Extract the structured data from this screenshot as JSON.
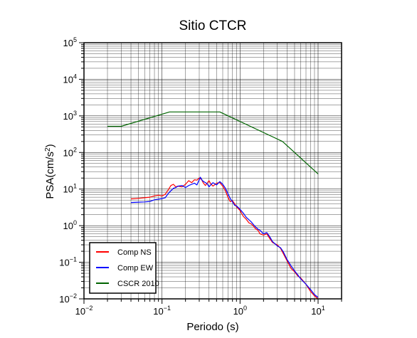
{
  "chart_data": {
    "type": "line",
    "title": "Sitio CTCR",
    "xlabel": "Periodo (s)",
    "ylabel_main": "PSA(cm/s",
    "ylabel_sup": "2",
    "ylabel_end": ")",
    "x_scale": "log",
    "y_scale": "log",
    "xlim": [
      0.01,
      20
    ],
    "ylim": [
      0.01,
      100000
    ],
    "grid": true,
    "legend_position": "bottom-left",
    "x_ticks": [
      {
        "base": "10",
        "exp": "−2"
      },
      {
        "base": "10",
        "exp": "−1"
      },
      {
        "base": "10",
        "exp": "0"
      },
      {
        "base": "10",
        "exp": "1"
      }
    ],
    "y_ticks": [
      {
        "base": "10",
        "exp": "−2"
      },
      {
        "base": "10",
        "exp": "−1"
      },
      {
        "base": "10",
        "exp": "0"
      },
      {
        "base": "10",
        "exp": "1"
      },
      {
        "base": "10",
        "exp": "2"
      },
      {
        "base": "10",
        "exp": "3"
      },
      {
        "base": "10",
        "exp": "4"
      },
      {
        "base": "10",
        "exp": "5"
      }
    ],
    "series": [
      {
        "name": "Comp NS",
        "color": "#ff0000",
        "points": [
          [
            0.04,
            5.4
          ],
          [
            0.05,
            5.6
          ],
          [
            0.06,
            5.8
          ],
          [
            0.07,
            6.0
          ],
          [
            0.08,
            6.5
          ],
          [
            0.09,
            6.8
          ],
          [
            0.1,
            6.5
          ],
          [
            0.11,
            7.2
          ],
          [
            0.12,
            9.5
          ],
          [
            0.13,
            12.5
          ],
          [
            0.14,
            13.5
          ],
          [
            0.15,
            11.5
          ],
          [
            0.16,
            12.0
          ],
          [
            0.18,
            11.5
          ],
          [
            0.2,
            13.5
          ],
          [
            0.22,
            17.0
          ],
          [
            0.24,
            15.0
          ],
          [
            0.26,
            18.0
          ],
          [
            0.28,
            17.5
          ],
          [
            0.3,
            20.0
          ],
          [
            0.32,
            18.5
          ],
          [
            0.34,
            14.5
          ],
          [
            0.36,
            12.5
          ],
          [
            0.38,
            14.5
          ],
          [
            0.4,
            17.0
          ],
          [
            0.42,
            14.0
          ],
          [
            0.45,
            12.0
          ],
          [
            0.5,
            14.5
          ],
          [
            0.55,
            15.0
          ],
          [
            0.6,
            12.0
          ],
          [
            0.65,
            9.0
          ],
          [
            0.7,
            6.0
          ],
          [
            0.75,
            4.5
          ],
          [
            0.8,
            4.8
          ],
          [
            0.85,
            4.0
          ],
          [
            0.9,
            3.3
          ],
          [
            1.0,
            2.6
          ],
          [
            1.1,
            1.8
          ],
          [
            1.2,
            1.5
          ],
          [
            1.3,
            1.2
          ],
          [
            1.4,
            1.1
          ],
          [
            1.5,
            0.95
          ],
          [
            1.6,
            0.8
          ],
          [
            1.7,
            0.75
          ],
          [
            1.8,
            0.6
          ],
          [
            2.0,
            0.55
          ],
          [
            2.2,
            0.6
          ],
          [
            2.4,
            0.45
          ],
          [
            2.6,
            0.35
          ],
          [
            2.8,
            0.32
          ],
          [
            3.0,
            0.3
          ],
          [
            3.3,
            0.24
          ],
          [
            3.6,
            0.17
          ],
          [
            4.0,
            0.11
          ],
          [
            4.5,
            0.068
          ],
          [
            5.0,
            0.055
          ],
          [
            5.5,
            0.042
          ],
          [
            6.0,
            0.037
          ],
          [
            7.0,
            0.025
          ],
          [
            8.0,
            0.016
          ],
          [
            9.0,
            0.012
          ],
          [
            10.0,
            0.01
          ]
        ]
      },
      {
        "name": "Comp EW",
        "color": "#0000ff",
        "points": [
          [
            0.04,
            4.3
          ],
          [
            0.05,
            4.4
          ],
          [
            0.06,
            4.45
          ],
          [
            0.07,
            4.6
          ],
          [
            0.08,
            5.1
          ],
          [
            0.09,
            5.3
          ],
          [
            0.1,
            5.5
          ],
          [
            0.11,
            5.8
          ],
          [
            0.12,
            7.5
          ],
          [
            0.13,
            9.0
          ],
          [
            0.14,
            10.5
          ],
          [
            0.15,
            11.0
          ],
          [
            0.16,
            12.0
          ],
          [
            0.18,
            12.5
          ],
          [
            0.2,
            11.0
          ],
          [
            0.22,
            12.5
          ],
          [
            0.24,
            13.5
          ],
          [
            0.26,
            14.5
          ],
          [
            0.28,
            13.0
          ],
          [
            0.3,
            18.0
          ],
          [
            0.31,
            21.0
          ],
          [
            0.33,
            17.0
          ],
          [
            0.35,
            15.5
          ],
          [
            0.38,
            14.0
          ],
          [
            0.4,
            11.5
          ],
          [
            0.42,
            13.0
          ],
          [
            0.45,
            15.0
          ],
          [
            0.5,
            13.0
          ],
          [
            0.55,
            16.0
          ],
          [
            0.6,
            13.5
          ],
          [
            0.65,
            10.5
          ],
          [
            0.7,
            7.5
          ],
          [
            0.75,
            5.5
          ],
          [
            0.8,
            4.5
          ],
          [
            0.85,
            3.6
          ],
          [
            0.9,
            3.5
          ],
          [
            1.0,
            2.8
          ],
          [
            1.1,
            2.2
          ],
          [
            1.2,
            1.7
          ],
          [
            1.3,
            1.45
          ],
          [
            1.4,
            1.25
          ],
          [
            1.5,
            1.05
          ],
          [
            1.6,
            0.9
          ],
          [
            1.7,
            0.8
          ],
          [
            1.8,
            0.75
          ],
          [
            2.0,
            0.6
          ],
          [
            2.2,
            0.65
          ],
          [
            2.4,
            0.5
          ],
          [
            2.6,
            0.37
          ],
          [
            2.8,
            0.32
          ],
          [
            3.0,
            0.28
          ],
          [
            3.3,
            0.25
          ],
          [
            3.6,
            0.19
          ],
          [
            4.0,
            0.12
          ],
          [
            4.5,
            0.08
          ],
          [
            5.0,
            0.058
          ],
          [
            5.5,
            0.045
          ],
          [
            6.0,
            0.035
          ],
          [
            7.0,
            0.025
          ],
          [
            8.0,
            0.018
          ],
          [
            9.0,
            0.013
          ],
          [
            10.0,
            0.011
          ]
        ]
      },
      {
        "name": "CSCR 2010",
        "color": "#006400",
        "points": [
          [
            0.02,
            520
          ],
          [
            0.03,
            520
          ],
          [
            0.125,
            1280
          ],
          [
            0.55,
            1280
          ],
          [
            3.5,
            200
          ],
          [
            10.0,
            26
          ]
        ]
      }
    ]
  }
}
